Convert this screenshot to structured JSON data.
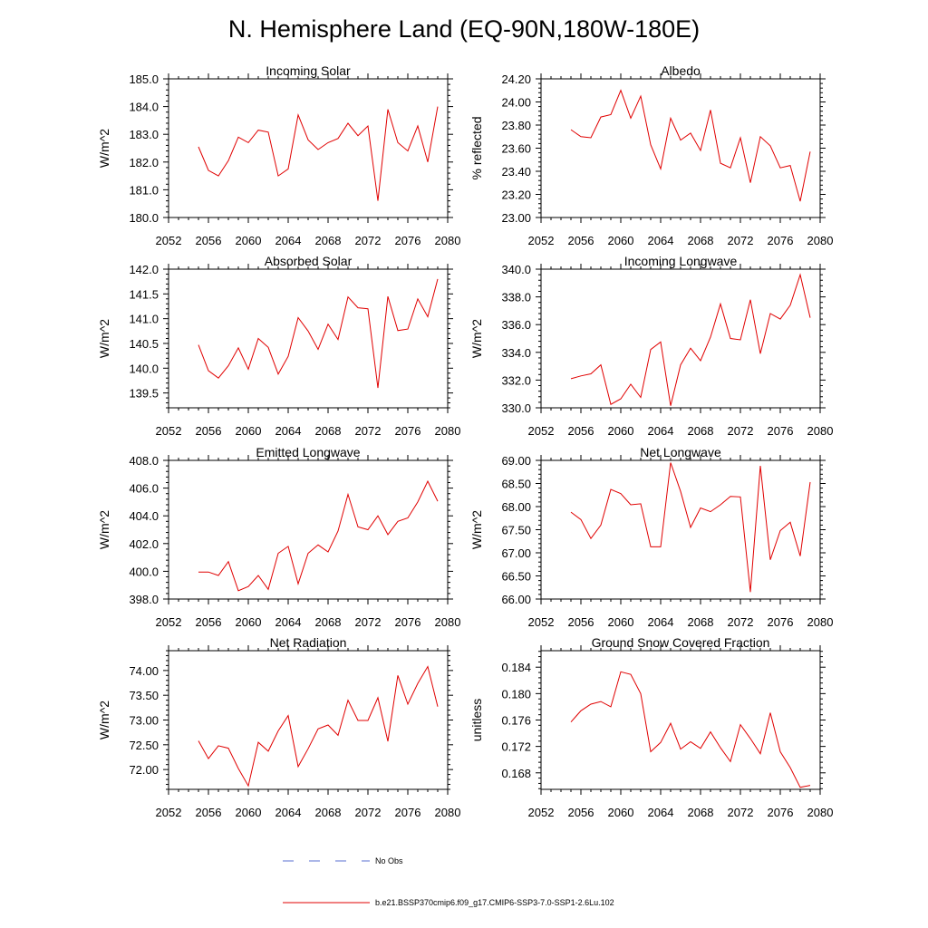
{
  "figure": {
    "title": "N. Hemisphere Land (EQ-90N,180W-180E)"
  },
  "legend": [
    {
      "label": "No Obs",
      "style": "dashed",
      "color": "#5a6fd0"
    },
    {
      "label": "b.e21.BSSP370cmip6.f09_g17.CMIP6-SSP3-7.0-SSP1-2.6Lu.102",
      "style": "solid",
      "color": "#e00000"
    }
  ],
  "chart_data": [
    {
      "type": "line",
      "title": "Incoming Solar",
      "ylabel": "W/m^2",
      "xlim": [
        2052,
        2080
      ],
      "ylim": [
        180,
        185
      ],
      "xticks": [
        "2052",
        "2056",
        "2060",
        "2064",
        "2068",
        "2072",
        "2076",
        "2080"
      ],
      "yticks": [
        "180.0",
        "181.0",
        "182.0",
        "183.0",
        "184.0",
        "185.0"
      ],
      "x": [
        2055,
        2056,
        2057,
        2058,
        2059,
        2060,
        2061,
        2062,
        2063,
        2064,
        2065,
        2066,
        2067,
        2068,
        2069,
        2070,
        2071,
        2072,
        2073,
        2074,
        2075,
        2076,
        2077,
        2078,
        2079
      ],
      "series": [
        {
          "color": "#e00000",
          "values": [
            182.55,
            181.7,
            181.5,
            182.05,
            182.9,
            182.7,
            183.15,
            183.08,
            181.5,
            181.75,
            183.7,
            182.8,
            182.45,
            182.7,
            182.85,
            183.4,
            182.95,
            183.3,
            180.6,
            183.9,
            182.7,
            182.4,
            183.3,
            182.0,
            184.0
          ]
        }
      ]
    },
    {
      "type": "line",
      "title": "Albedo",
      "ylabel": "% reflected",
      "xlim": [
        2052,
        2080
      ],
      "ylim": [
        23.0,
        24.2
      ],
      "xticks": [
        "2052",
        "2056",
        "2060",
        "2064",
        "2068",
        "2072",
        "2076",
        "2080"
      ],
      "yticks": [
        "23.00",
        "23.20",
        "23.40",
        "23.60",
        "23.80",
        "24.00",
        "24.20"
      ],
      "x": [
        2055,
        2056,
        2057,
        2058,
        2059,
        2060,
        2061,
        2062,
        2063,
        2064,
        2065,
        2066,
        2067,
        2068,
        2069,
        2070,
        2071,
        2072,
        2073,
        2074,
        2075,
        2076,
        2077,
        2078,
        2079
      ],
      "series": [
        {
          "color": "#e00000",
          "values": [
            23.76,
            23.7,
            23.69,
            23.87,
            23.89,
            24.1,
            23.86,
            24.05,
            23.63,
            23.42,
            23.86,
            23.67,
            23.73,
            23.58,
            23.93,
            23.47,
            23.43,
            23.69,
            23.3,
            23.7,
            23.62,
            23.43,
            23.45,
            23.14,
            23.57
          ]
        }
      ]
    },
    {
      "type": "line",
      "title": "Absorbed Solar",
      "ylabel": "W/m^2",
      "xlim": [
        2052,
        2080
      ],
      "ylim": [
        139.2,
        142.0
      ],
      "xticks": [
        "2052",
        "2056",
        "2060",
        "2064",
        "2068",
        "2072",
        "2076",
        "2080"
      ],
      "yticks": [
        "139.5",
        "140.0",
        "140.5",
        "141.0",
        "141.5",
        "142.0"
      ],
      "x": [
        2055,
        2056,
        2057,
        2058,
        2059,
        2060,
        2061,
        2062,
        2063,
        2064,
        2065,
        2066,
        2067,
        2068,
        2069,
        2070,
        2071,
        2072,
        2073,
        2074,
        2075,
        2076,
        2077,
        2078,
        2079
      ],
      "series": [
        {
          "color": "#e00000",
          "values": [
            140.47,
            139.95,
            139.8,
            140.05,
            140.41,
            139.98,
            140.6,
            140.42,
            139.88,
            140.24,
            141.02,
            140.75,
            140.38,
            140.89,
            140.58,
            141.44,
            141.22,
            141.2,
            139.6,
            141.45,
            140.76,
            140.79,
            141.4,
            141.04,
            141.8
          ]
        }
      ]
    },
    {
      "type": "line",
      "title": "Incoming Longwave",
      "ylabel": "W/m^2",
      "xlim": [
        2052,
        2080
      ],
      "ylim": [
        330,
        340
      ],
      "xticks": [
        "2052",
        "2056",
        "2060",
        "2064",
        "2068",
        "2072",
        "2076",
        "2080"
      ],
      "yticks": [
        "330.0",
        "332.0",
        "334.0",
        "336.0",
        "338.0",
        "340.0"
      ],
      "x": [
        2055,
        2056,
        2057,
        2058,
        2059,
        2060,
        2061,
        2062,
        2063,
        2064,
        2065,
        2066,
        2067,
        2068,
        2069,
        2070,
        2071,
        2072,
        2073,
        2074,
        2075,
        2076,
        2077,
        2078,
        2079
      ],
      "series": [
        {
          "color": "#e00000",
          "values": [
            332.1,
            332.3,
            332.45,
            333.1,
            330.25,
            330.65,
            331.7,
            330.75,
            334.2,
            334.75,
            330.15,
            333.1,
            334.3,
            333.4,
            335.1,
            337.5,
            335.0,
            334.9,
            337.8,
            333.9,
            336.8,
            336.4,
            337.4,
            339.6,
            336.5
          ]
        }
      ]
    },
    {
      "type": "line",
      "title": "Emitted Longwave",
      "ylabel": "W/m^2",
      "xlim": [
        2052,
        2080
      ],
      "ylim": [
        398,
        408
      ],
      "xticks": [
        "2052",
        "2056",
        "2060",
        "2064",
        "2068",
        "2072",
        "2076",
        "2080"
      ],
      "yticks": [
        "398.0",
        "400.0",
        "402.0",
        "404.0",
        "406.0",
        "408.0"
      ],
      "x": [
        2055,
        2056,
        2057,
        2058,
        2059,
        2060,
        2061,
        2062,
        2063,
        2064,
        2065,
        2066,
        2067,
        2068,
        2069,
        2070,
        2071,
        2072,
        2073,
        2074,
        2075,
        2076,
        2077,
        2078,
        2079
      ],
      "series": [
        {
          "color": "#e00000",
          "values": [
            399.95,
            399.95,
            399.7,
            400.7,
            398.6,
            398.9,
            399.7,
            398.7,
            401.3,
            401.8,
            399.1,
            401.3,
            401.9,
            401.4,
            402.9,
            405.55,
            403.2,
            403.0,
            404.0,
            402.65,
            403.6,
            403.85,
            405.0,
            406.5,
            405.05
          ]
        }
      ]
    },
    {
      "type": "line",
      "title": "Net Longwave",
      "ylabel": "W/m^2",
      "xlim": [
        2052,
        2080
      ],
      "ylim": [
        66.0,
        69.0
      ],
      "xticks": [
        "2052",
        "2056",
        "2060",
        "2064",
        "2068",
        "2072",
        "2076",
        "2080"
      ],
      "yticks": [
        "66.00",
        "66.50",
        "67.00",
        "67.50",
        "68.00",
        "68.50",
        "69.00"
      ],
      "x": [
        2055,
        2056,
        2057,
        2058,
        2059,
        2060,
        2061,
        2062,
        2063,
        2064,
        2065,
        2066,
        2067,
        2068,
        2069,
        2070,
        2071,
        2072,
        2073,
        2074,
        2075,
        2076,
        2077,
        2078,
        2079
      ],
      "series": [
        {
          "color": "#e00000",
          "values": [
            67.88,
            67.72,
            67.31,
            67.6,
            68.37,
            68.28,
            68.04,
            68.06,
            67.13,
            67.13,
            68.95,
            68.33,
            67.55,
            67.97,
            67.89,
            68.04,
            68.22,
            68.21,
            66.15,
            68.88,
            66.85,
            67.48,
            67.66,
            66.93,
            68.53
          ]
        }
      ]
    },
    {
      "type": "line",
      "title": "Net Radiation",
      "ylabel": "W/m^2",
      "xlim": [
        2052,
        2080
      ],
      "ylim": [
        71.6,
        74.4
      ],
      "xticks": [
        "2052",
        "2056",
        "2060",
        "2064",
        "2068",
        "2072",
        "2076",
        "2080"
      ],
      "yticks": [
        "72.00",
        "72.50",
        "73.00",
        "73.50",
        "74.00"
      ],
      "x": [
        2055,
        2056,
        2057,
        2058,
        2059,
        2060,
        2061,
        2062,
        2063,
        2064,
        2065,
        2066,
        2067,
        2068,
        2069,
        2070,
        2071,
        2072,
        2073,
        2074,
        2075,
        2076,
        2077,
        2078,
        2079
      ],
      "series": [
        {
          "color": "#e00000",
          "values": [
            72.58,
            72.22,
            72.48,
            72.43,
            72.02,
            71.67,
            72.55,
            72.37,
            72.78,
            73.09,
            72.06,
            72.42,
            72.82,
            72.9,
            72.69,
            73.4,
            72.99,
            72.99,
            73.45,
            72.57,
            73.9,
            73.32,
            73.74,
            74.08,
            73.27
          ]
        }
      ]
    },
    {
      "type": "line",
      "title": "Ground Snow Covered Fraction",
      "ylabel": "unitless",
      "xlim": [
        2052,
        2080
      ],
      "ylim": [
        0.1655,
        0.1865
      ],
      "xticks": [
        "2052",
        "2056",
        "2060",
        "2064",
        "2068",
        "2072",
        "2076",
        "2080"
      ],
      "yticks": [
        "0.168",
        "0.172",
        "0.176",
        "0.180",
        "0.184"
      ],
      "x": [
        2055,
        2056,
        2057,
        2058,
        2059,
        2060,
        2061,
        2062,
        2063,
        2064,
        2065,
        2066,
        2067,
        2068,
        2069,
        2070,
        2071,
        2072,
        2073,
        2074,
        2075,
        2076,
        2077,
        2078,
        2079
      ],
      "series": [
        {
          "color": "#e00000",
          "values": [
            0.1757,
            0.1774,
            0.1784,
            0.1788,
            0.178,
            0.1833,
            0.1829,
            0.18,
            0.1712,
            0.1726,
            0.1755,
            0.1716,
            0.1727,
            0.1717,
            0.1742,
            0.1718,
            0.1697,
            0.1753,
            0.1732,
            0.1709,
            0.1771,
            0.1712,
            0.1688,
            0.1658,
            0.1661
          ]
        }
      ]
    }
  ]
}
